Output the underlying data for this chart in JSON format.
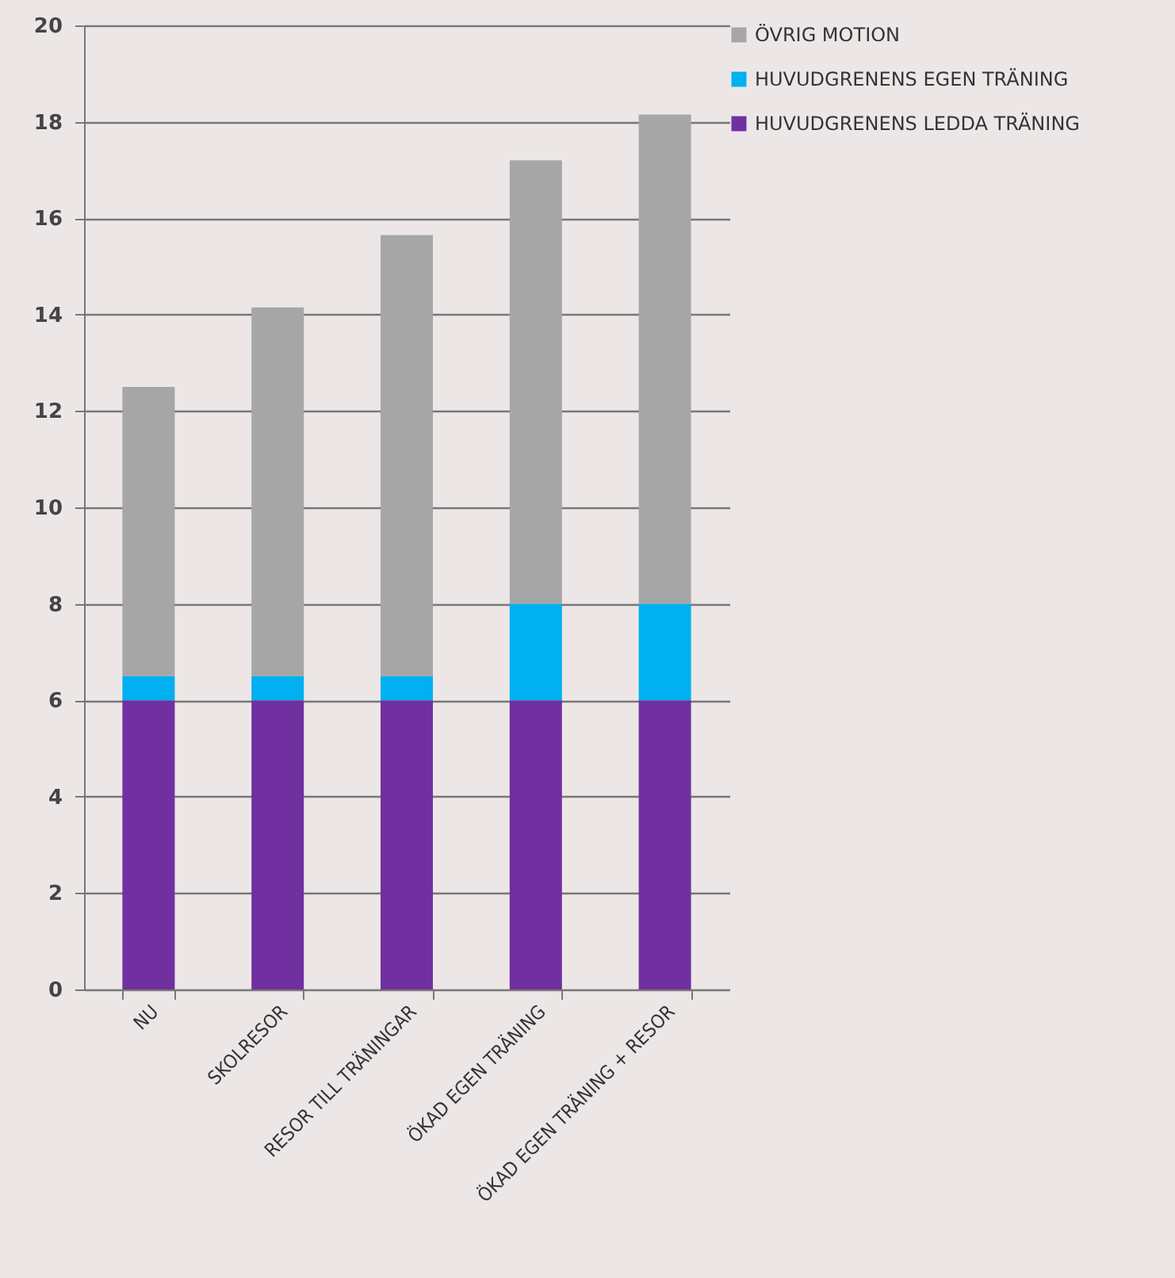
{
  "chart_data": {
    "type": "bar",
    "stacked": true,
    "categories": [
      "NU",
      "SKOLRESOR",
      "RESOR TILL TRÄNINGAR",
      "ÖKAD EGEN TRÄNING",
      "ÖKAD EGEN TRÄNING + RESOR"
    ],
    "series": [
      {
        "name": "HUVUDGRENENS LEDDA TRÄNING",
        "color": "#7030a0",
        "values": [
          6,
          6,
          6,
          6,
          6
        ]
      },
      {
        "name": "HUVUDGRENENS EGEN TRÄNING",
        "color": "#00b0f0",
        "values": [
          0.5,
          0.5,
          0.5,
          2,
          2
        ]
      },
      {
        "name": "ÖVRIG MOTION",
        "color": "#a6a6a6",
        "values": [
          6,
          7.65,
          9.15,
          9.2,
          10.15
        ]
      }
    ],
    "ylim": [
      0,
      20
    ],
    "yticks": [
      0,
      2,
      4,
      6,
      8,
      10,
      12,
      14,
      16,
      18,
      20
    ],
    "grid": "y",
    "legend": "right"
  }
}
